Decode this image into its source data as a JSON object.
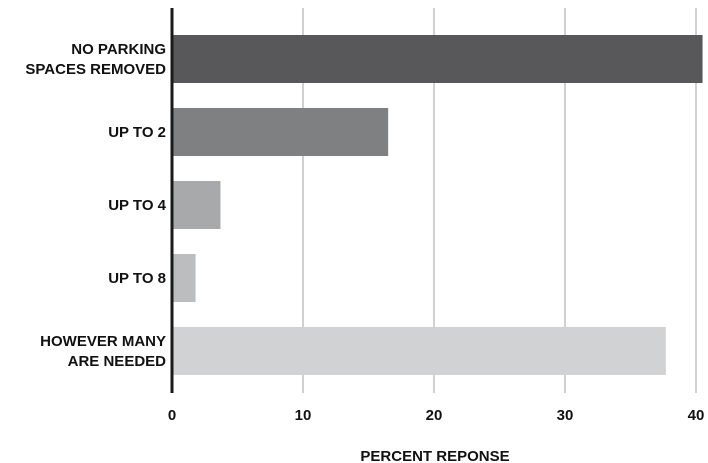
{
  "chart_data": {
    "type": "bar",
    "orientation": "horizontal",
    "categories": [
      [
        "NO PARKING",
        "SPACES REMOVED"
      ],
      [
        "UP TO 2"
      ],
      [
        "UP TO 4"
      ],
      [
        "UP TO 8"
      ],
      [
        "HOWEVER MANY",
        "ARE NEEDED"
      ]
    ],
    "values": [
      40.5,
      16.5,
      3.7,
      1.8,
      37.7
    ],
    "bar_colors": [
      "#58585a",
      "#7f8082",
      "#a8a9ab",
      "#bcbdbf",
      "#d1d2d4"
    ],
    "xlabel": "PERCENT REPONSE",
    "xticks": [
      0,
      10,
      20,
      30,
      40
    ],
    "xlim": [
      0,
      41
    ],
    "grid": "vertical",
    "gridline_color": "#a0a0a0",
    "axis_color": "#1a1a1a"
  }
}
